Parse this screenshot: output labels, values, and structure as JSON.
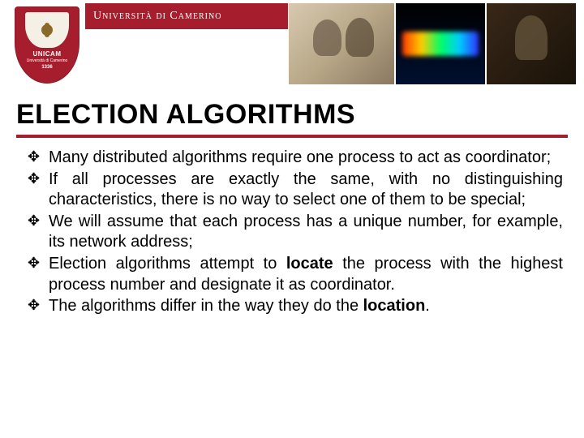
{
  "header": {
    "logo": {
      "label": "UNICAM",
      "sublabel": "Università di Camerino",
      "year": "1336"
    },
    "banner_text": "Università di Camerino"
  },
  "title": "ELECTION ALGORITHMS",
  "accent_color": "#a61e2d",
  "bullets": [
    {
      "pre": "Many distributed algorithms require one process to act as coordinator;",
      "bold": "",
      "post": ""
    },
    {
      "pre": "If all processes are exactly the same, with no distinguishing characteristics, there is no way to select one of them to be special;",
      "bold": "",
      "post": ""
    },
    {
      "pre": "We will assume that each process has a unique number, for example, its network address;",
      "bold": "",
      "post": ""
    },
    {
      "pre": "Election algorithms attempt to ",
      "bold": "locate",
      "post": " the process with the highest process number and designate it as coordinator."
    },
    {
      "pre": "The algorithms differ in the way they do the ",
      "bold": "location",
      "post": "."
    }
  ]
}
